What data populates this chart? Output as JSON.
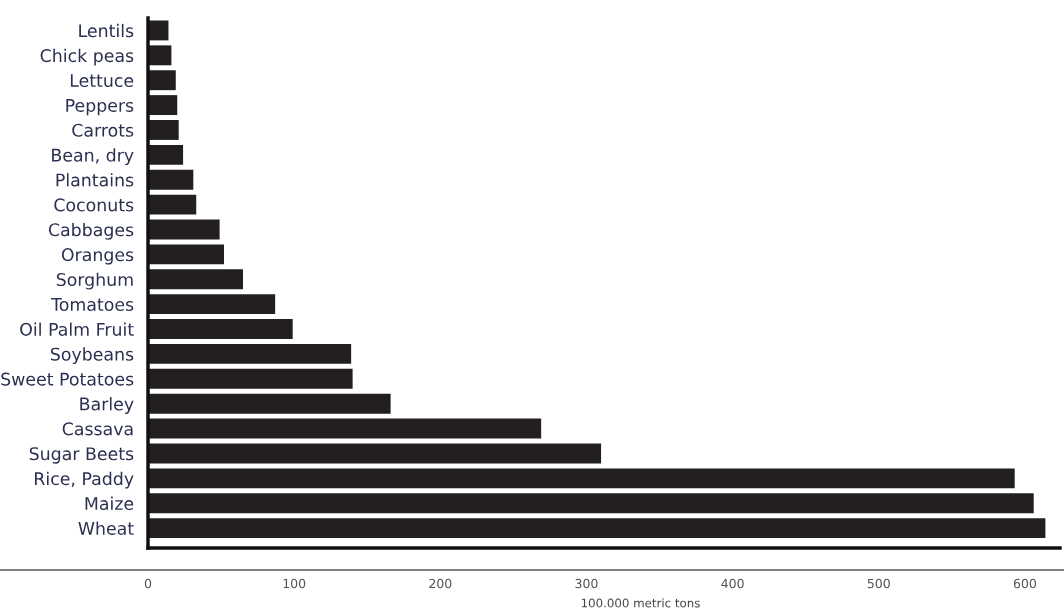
{
  "chart_data": {
    "type": "bar",
    "orientation": "horizontal",
    "xlabel": "100.000 metric tons",
    "categories": [
      "Lentils",
      "Chick peas",
      "Lettuce",
      "Peppers",
      "Carrots",
      "Bean, dry",
      "Plantains",
      "Coconuts",
      "Cabbages",
      "Oranges",
      "Sorghum",
      "Tomatoes",
      "Oil Palm Fruit",
      "Soybeans",
      "Sweet Potatoes",
      "Barley",
      "Cassava",
      "Sugar Beets",
      "Rice, Paddy",
      "Maize",
      "Wheat"
    ],
    "values": [
      14,
      16,
      19,
      20,
      21,
      24,
      31,
      33,
      49,
      52,
      65,
      87,
      99,
      139,
      140,
      166,
      269,
      310,
      593,
      606,
      614
    ],
    "color": "#231f20",
    "xlim": [
      0,
      624
    ],
    "xticks": [
      0,
      100,
      200,
      300,
      400,
      500,
      600
    ],
    "grid": false
  }
}
